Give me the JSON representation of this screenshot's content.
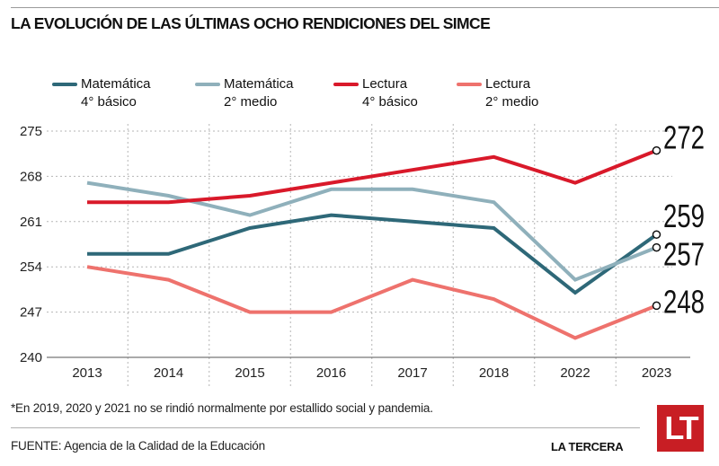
{
  "title": "LA EVOLUCIÓN DE LAS ÚLTIMAS OCHO RENDICIONES DEL SIMCE",
  "legend": [
    {
      "line1": "Matemática",
      "line2": "4° básico",
      "color": "#2e6878"
    },
    {
      "line1": "Matemática",
      "line2": "2° medio",
      "color": "#8fb0bb"
    },
    {
      "line1": "Lectura",
      "line2": "4° básico",
      "color": "#d9192a"
    },
    {
      "line1": "Lectura",
      "line2": "2° medio",
      "color": "#ee726d"
    }
  ],
  "footnote": "*En 2019, 2020 y 2021 no se rindió normalmente por estallido social y pandemia.",
  "source": "FUENTE: Agencia de la Calidad de la Educación",
  "brand": "LA TERCERA",
  "logo_text": "LT",
  "chart_data": {
    "type": "line",
    "title": "LA EVOLUCIÓN DE LAS ÚLTIMAS OCHO RENDICIONES DEL SIMCE",
    "xlabel": "",
    "ylabel": "",
    "categories": [
      "2013",
      "2014",
      "2015",
      "2016",
      "2017",
      "2018",
      "2022",
      "2023"
    ],
    "ylim": [
      240,
      275
    ],
    "yticks": [
      240,
      247,
      254,
      261,
      268,
      275
    ],
    "grid": true,
    "legend_position": "top",
    "series": [
      {
        "name": "Matemática 4° básico",
        "color": "#2e6878",
        "values": [
          256,
          256,
          260,
          262,
          261,
          260,
          250,
          259
        ]
      },
      {
        "name": "Matemática 2° medio",
        "color": "#8fb0bb",
        "values": [
          267,
          265,
          262,
          266,
          266,
          264,
          252,
          257
        ]
      },
      {
        "name": "Lectura 4° básico",
        "color": "#d9192a",
        "values": [
          264,
          264,
          265,
          267,
          269,
          271,
          267,
          272
        ]
      },
      {
        "name": "Lectura 2° medio",
        "color": "#ee726d",
        "values": [
          254,
          252,
          247,
          247,
          252,
          249,
          243,
          248
        ]
      }
    ],
    "end_labels": [
      {
        "series": "Lectura 4° básico",
        "text": "272"
      },
      {
        "series": "Matemática 4° básico",
        "text": "259"
      },
      {
        "series": "Matemática 2° medio",
        "text": "257"
      },
      {
        "series": "Lectura 2° medio",
        "text": "248"
      }
    ],
    "annotations": [
      "*En 2019, 2020 y 2021 no se rindió normalmente por estallido social y pandemia."
    ]
  }
}
